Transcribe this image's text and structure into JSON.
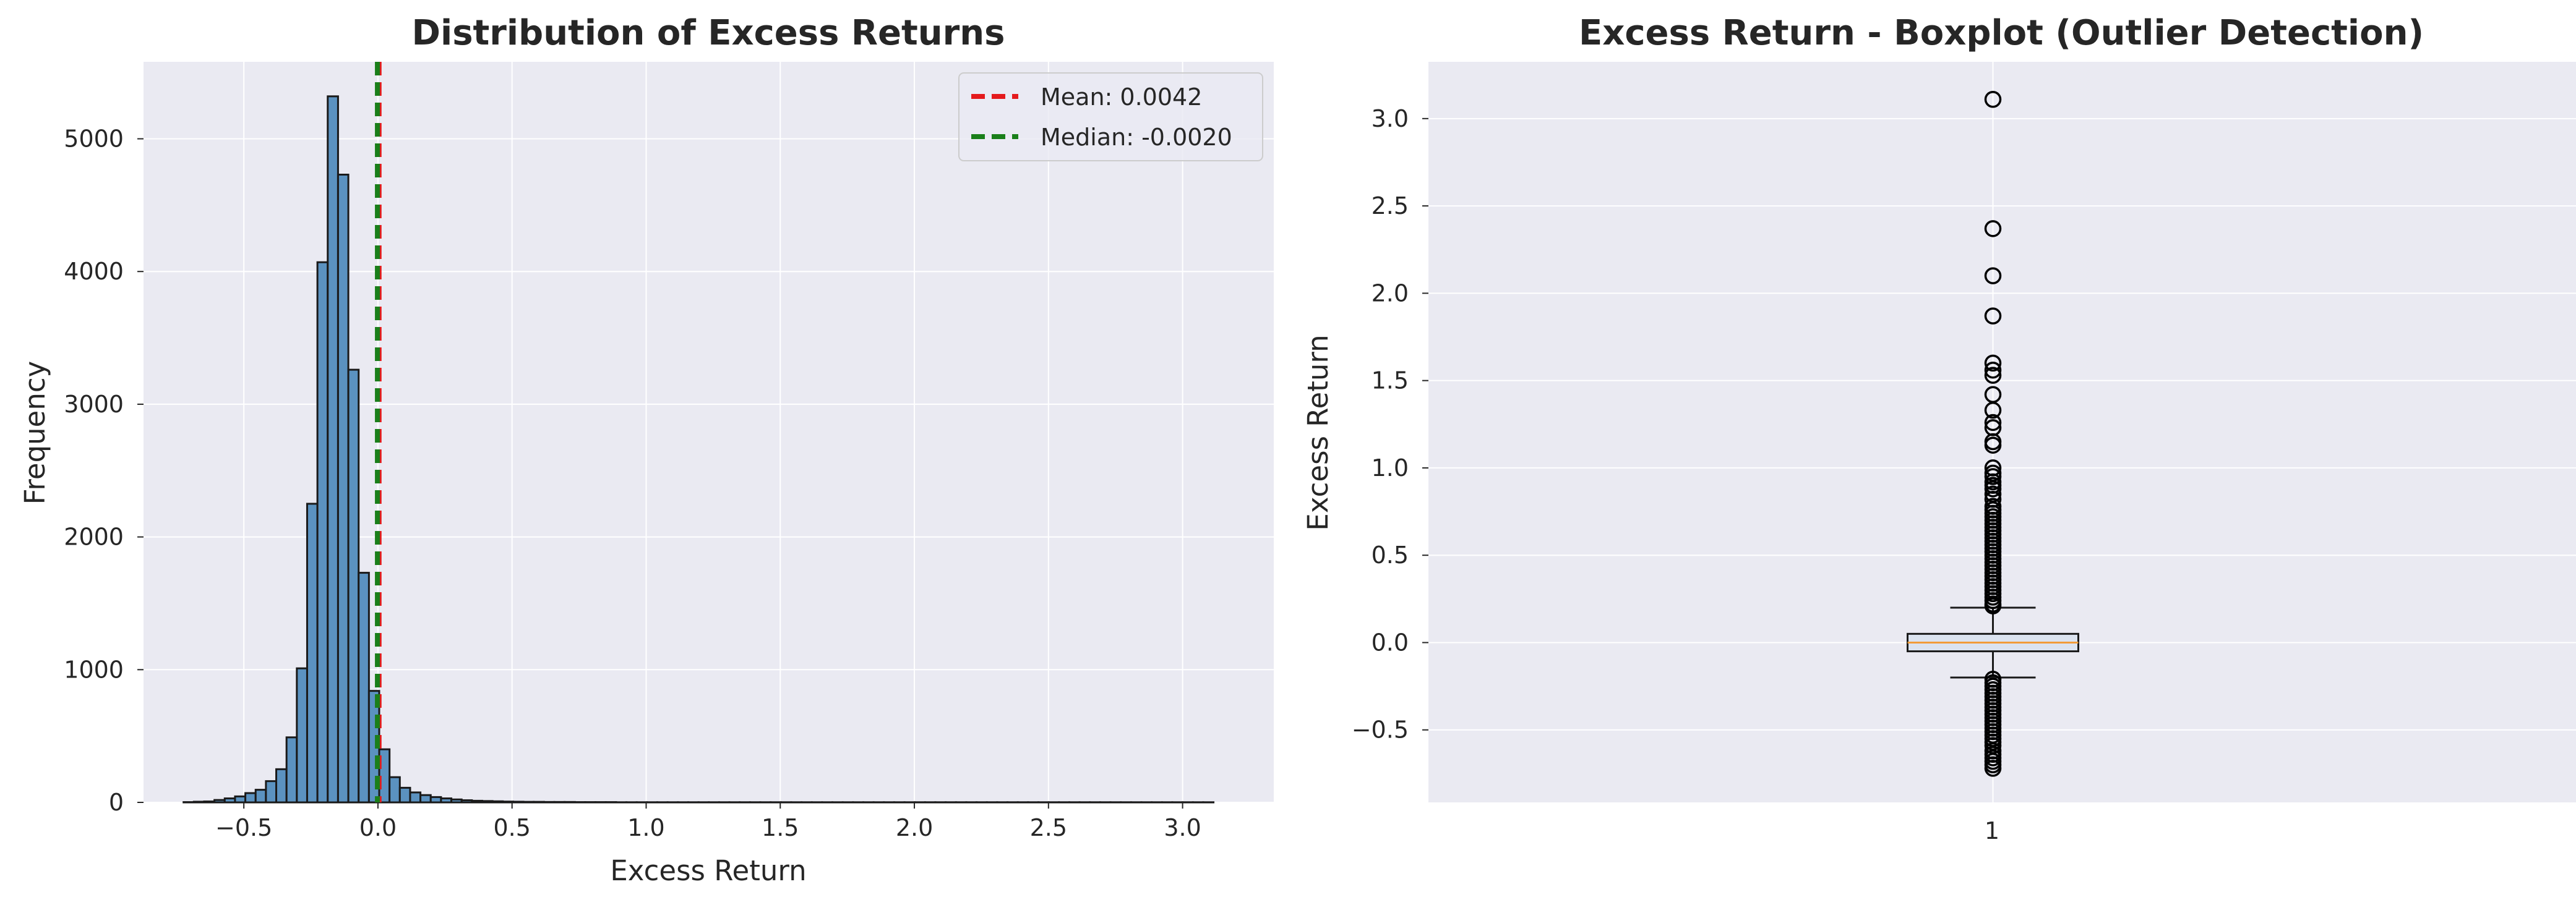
{
  "chart_data": [
    {
      "type": "histogram",
      "title": "Distribution of Excess Returns",
      "xlabel": "Excess Return",
      "ylabel": "Frequency",
      "xlim": [
        -0.874,
        3.34
      ],
      "ylim": [
        0,
        5580
      ],
      "xticks": [
        -0.5,
        0.0,
        0.5,
        1.0,
        1.5,
        2.0,
        2.5,
        3.0
      ],
      "xtick_labels": [
        "−0.5",
        "0.0",
        "0.5",
        "1.0",
        "1.5",
        "2.0",
        "2.5",
        "3.0"
      ],
      "yticks": [
        0,
        1000,
        2000,
        3000,
        4000,
        5000
      ],
      "ytick_labels": [
        "0",
        "1000",
        "2000",
        "3000",
        "4000",
        "5000"
      ],
      "grid": true,
      "bin_start": -0.7248,
      "bin_width": 0.0384,
      "frequencies": [
        2,
        5,
        7,
        18,
        30,
        45,
        70,
        95,
        160,
        250,
        490,
        1010,
        2250,
        4070,
        5320,
        4730,
        3260,
        1730,
        840,
        400,
        190,
        110,
        75,
        55,
        40,
        30,
        22,
        16,
        12,
        10,
        8,
        6,
        5,
        4,
        4,
        3,
        3,
        3,
        2,
        2,
        2,
        2,
        1,
        1,
        1,
        1,
        1,
        1,
        1,
        1,
        1,
        1,
        1,
        1,
        1,
        1,
        1,
        1,
        1,
        1,
        1,
        1,
        1,
        1,
        1,
        1,
        1,
        1,
        1,
        1,
        1,
        1,
        1,
        1,
        1,
        1,
        1,
        1,
        1,
        1,
        1,
        1,
        1,
        1,
        1,
        1,
        1,
        1,
        1,
        1,
        1,
        1,
        1,
        1,
        1,
        1,
        1,
        1,
        1,
        1
      ],
      "bar_color": "#5b92c0",
      "lines": [
        {
          "name": "Mean: 0.0042",
          "x": 0.0042,
          "color": "#e41a1c",
          "style": "dashed"
        },
        {
          "name": "Median: -0.0020",
          "x": -0.002,
          "color": "#1a7f1a",
          "style": "dashed"
        }
      ],
      "legend_position": "upper right"
    },
    {
      "type": "boxplot",
      "title": "Excess Return - Boxplot (Outlier Detection)",
      "xlabel": "",
      "ylabel": "Excess Return",
      "category": "1",
      "ylim": [
        -0.915,
        3.325
      ],
      "yticks": [
        -0.5,
        0.0,
        0.5,
        1.0,
        1.5,
        2.0,
        2.5,
        3.0
      ],
      "ytick_labels": [
        "−0.5",
        "0.0",
        "0.5",
        "1.0",
        "1.5",
        "2.0",
        "2.5",
        "3.0"
      ],
      "grid": true,
      "q1": -0.05,
      "median": 0.0,
      "q3": 0.05,
      "whisker_low": -0.2,
      "whisker_high": 0.2,
      "box_color": "#dbe3ef",
      "median_color": "#f29c38",
      "outliers_high": [
        3.11,
        2.37,
        2.1,
        1.87,
        1.6,
        1.56,
        1.53,
        1.42,
        1.33,
        1.26,
        1.23,
        1.15,
        1.13,
        1.0,
        0.97,
        0.95,
        0.92,
        0.9,
        0.88,
        0.85,
        0.82,
        0.78,
        0.76,
        0.74,
        0.72,
        0.7,
        0.68,
        0.66,
        0.64,
        0.62,
        0.6,
        0.58,
        0.56,
        0.54,
        0.52,
        0.5,
        0.48,
        0.46,
        0.44,
        0.42,
        0.4,
        0.38,
        0.36,
        0.34,
        0.32,
        0.3,
        0.28,
        0.26,
        0.24,
        0.22,
        0.21
      ],
      "outliers_low": [
        -0.21,
        -0.23,
        -0.25,
        -0.27,
        -0.29,
        -0.31,
        -0.33,
        -0.35,
        -0.37,
        -0.39,
        -0.41,
        -0.43,
        -0.45,
        -0.47,
        -0.49,
        -0.51,
        -0.53,
        -0.55,
        -0.57,
        -0.59,
        -0.62,
        -0.64,
        -0.66,
        -0.68,
        -0.7,
        -0.72
      ]
    }
  ]
}
